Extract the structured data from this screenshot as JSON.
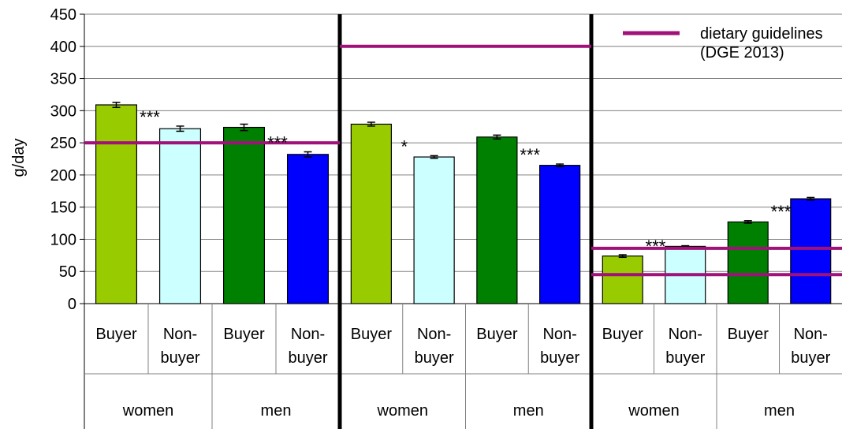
{
  "chart_data": {
    "type": "bar",
    "ylabel": "g/day",
    "ylim": [
      0,
      450
    ],
    "yticks": [
      0,
      50,
      100,
      150,
      200,
      250,
      300,
      350,
      400,
      450
    ],
    "grid": true,
    "legend": {
      "position": "top-right",
      "label": "dietary guidelines\n(DGE 2013)",
      "color": "#a0127a"
    },
    "bar_labels": [
      "Buyer",
      "Non-\nbuyer",
      "Buyer",
      "Non-\nbuyer"
    ],
    "group_labels": [
      "women",
      "men"
    ],
    "series_colors": [
      "#99cc00",
      "#ccffff",
      "#008000",
      "#0000ff"
    ],
    "panels": [
      {
        "values": [
          309,
          272,
          274,
          232
        ],
        "errors": [
          4,
          4,
          5,
          4
        ],
        "significance": [
          {
            "label": "***",
            "between": [
              0,
              1
            ]
          },
          {
            "label": "***",
            "between": [
              2,
              3
            ]
          }
        ],
        "guidelines": [
          250
        ]
      },
      {
        "values": [
          279,
          228,
          259,
          215
        ],
        "errors": [
          3,
          2,
          3,
          2
        ],
        "significance": [
          {
            "label": "*",
            "between": [
              0,
              1
            ]
          },
          {
            "label": "***",
            "between": [
              2,
              3
            ]
          }
        ],
        "guidelines": [
          400
        ]
      },
      {
        "values": [
          74,
          89,
          127,
          163
        ],
        "errors": [
          2,
          1,
          2,
          2
        ],
        "significance": [
          {
            "label": "***",
            "between": [
              0,
              1
            ]
          },
          {
            "label": "***",
            "between": [
              2,
              3
            ]
          }
        ],
        "guidelines": [
          86,
          45
        ]
      }
    ]
  }
}
